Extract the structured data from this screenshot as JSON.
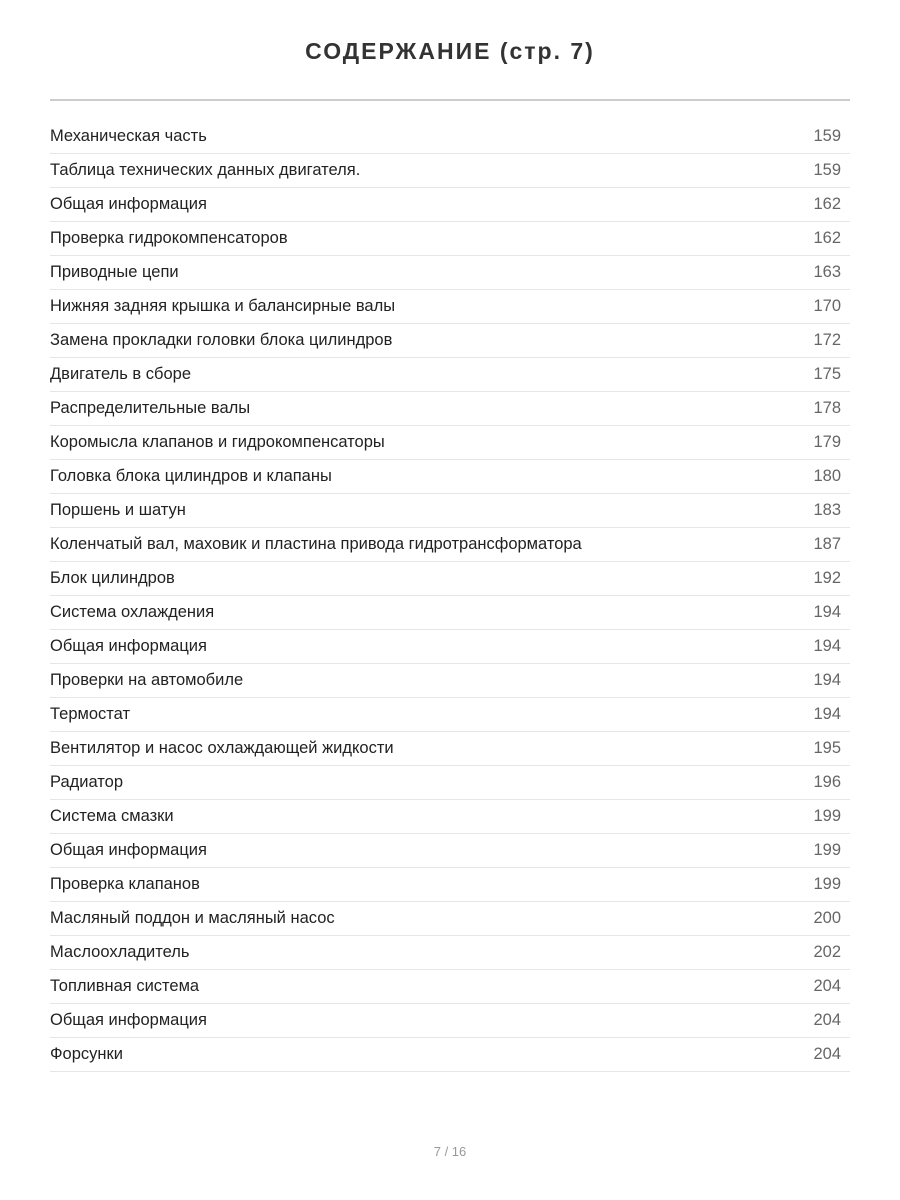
{
  "title": "СОДЕРЖАНИЕ (стр. 7)",
  "entries": [
    {
      "title": "Механическая часть",
      "page": "159"
    },
    {
      "title": "Таблица технических данных двигателя.",
      "page": "159"
    },
    {
      "title": "Общая информация",
      "page": "162"
    },
    {
      "title": "Проверка гидрокомпенсаторов",
      "page": "162"
    },
    {
      "title": "Приводные цепи",
      "page": "163"
    },
    {
      "title": "Нижняя задняя крышка и балансирные валы",
      "page": "170"
    },
    {
      "title": "Замена прокладки головки блока цилиндров",
      "page": "172"
    },
    {
      "title": "Двигатель в сборе",
      "page": "175"
    },
    {
      "title": "Распределительные валы",
      "page": "178"
    },
    {
      "title": "Коромысла клапанов и гидрокомпенсаторы",
      "page": "179"
    },
    {
      "title": "Головка блока цилиндров и клапаны",
      "page": "180"
    },
    {
      "title": "Поршень и шатун",
      "page": "183"
    },
    {
      "title": "Коленчатый вал, маховик и пластина привода гидротрансформатора",
      "page": "187"
    },
    {
      "title": "Блок цилиндров",
      "page": "192"
    },
    {
      "title": "Система охлаждения",
      "page": "194"
    },
    {
      "title": "Общая информация",
      "page": "194"
    },
    {
      "title": "Проверки на автомобиле",
      "page": "194"
    },
    {
      "title": "Термостат",
      "page": "194"
    },
    {
      "title": "Вентилятор и насос охлаждающей жидкости",
      "page": "195"
    },
    {
      "title": "Радиатор",
      "page": "196"
    },
    {
      "title": "Система смазки",
      "page": "199"
    },
    {
      "title": "Общая информация",
      "page": "199"
    },
    {
      "title": "Проверка клапанов",
      "page": "199"
    },
    {
      "title": "Масляный поддон и масляный насос",
      "page": "200"
    },
    {
      "title": "Маслоохладитель",
      "page": "202"
    },
    {
      "title": "Топливная система",
      "page": "204"
    },
    {
      "title": "Общая информация",
      "page": "204"
    },
    {
      "title": "Форсунки",
      "page": "204"
    }
  ],
  "footer": "7 / 16"
}
